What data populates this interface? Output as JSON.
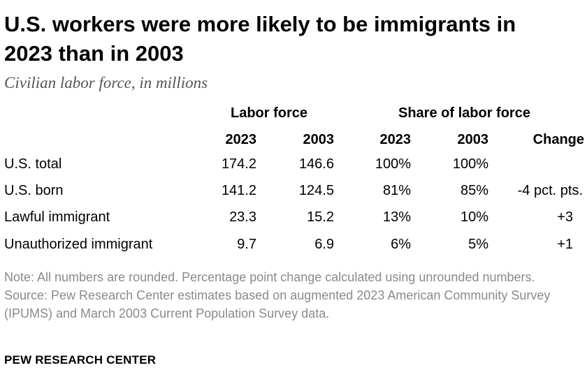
{
  "header": {
    "title": "U.S. workers were more likely to be immigrants in 2023 than in 2003",
    "subtitle": "Civilian labor force, in millions"
  },
  "chart_data": {
    "type": "table",
    "group_headers": [
      "Labor force",
      "Share of labor force"
    ],
    "columns": [
      "2023",
      "2003",
      "2023",
      "2003",
      "Change"
    ],
    "rows": [
      {
        "label": "U.S. total",
        "cells": [
          "174.2",
          "146.6",
          "100%",
          "100%",
          ""
        ]
      },
      {
        "label": "U.S. born",
        "cells": [
          "141.2",
          "124.5",
          "81%",
          "85%",
          "-4 pct. pts."
        ]
      },
      {
        "label": "Lawful immigrant",
        "cells": [
          "23.3",
          "15.2",
          "13%",
          "10%",
          "+3"
        ]
      },
      {
        "label": "Unauthorized immigrant",
        "cells": [
          "9.7",
          "6.9",
          "6%",
          "5%",
          "+1"
        ]
      }
    ]
  },
  "footer": {
    "note": "Note: All numbers are rounded. Percentage point change calculated using unrounded numbers.",
    "source": "Source: Pew Research Center estimates based on augmented 2023 American Community Survey (IPUMS) and March 2003 Current Population Survey data.",
    "brand": "PEW RESEARCH CENTER"
  }
}
